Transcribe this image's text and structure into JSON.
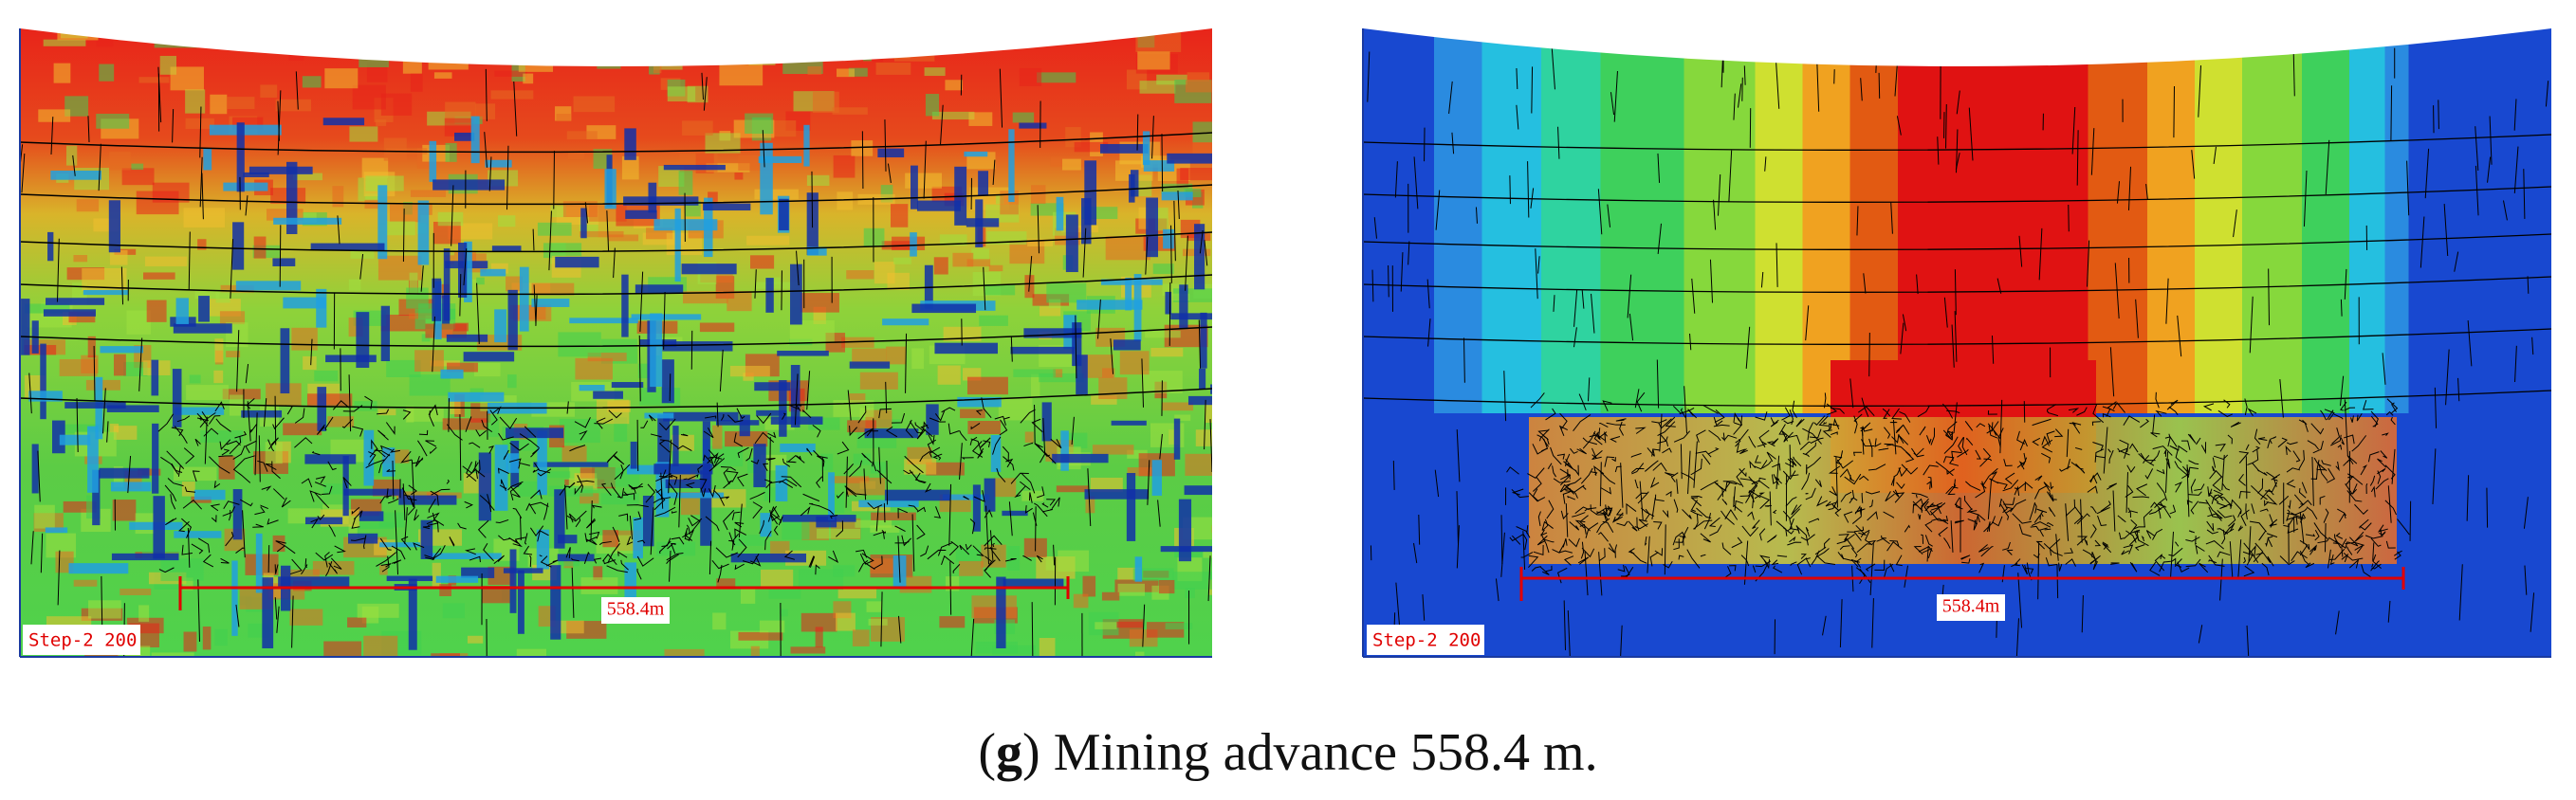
{
  "panels": [
    {
      "step_label": "Step-2 200",
      "span_label": "558.4m"
    },
    {
      "step_label": "Step-2 200",
      "span_label": "558.4m"
    }
  ],
  "caption": {
    "open": "(",
    "label": "g",
    "rest": ") Mining advance 558.4 m."
  }
}
